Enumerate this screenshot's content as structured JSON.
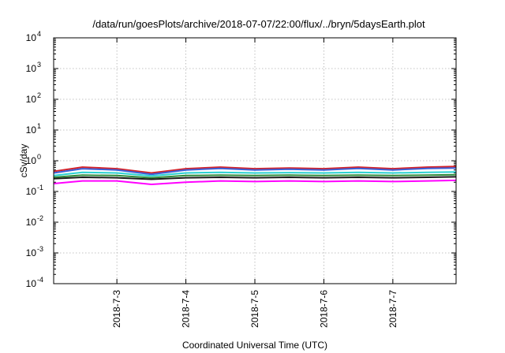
{
  "chart_data": {
    "type": "line",
    "title": "/data/run/goesPlots/archive/2018-07-07/22:00/flux/../bryn/5daysEarth.plot",
    "xlabel": "Coordinated Universal Time (UTC)",
    "ylabel": "cSv/day",
    "yscale": "log",
    "ylim": [
      0.0001,
      10000
    ],
    "xlim": [
      "2018-07-02 02:00",
      "2018-07-07 22:00"
    ],
    "grid": true,
    "y_ticks": [
      {
        "base": "10",
        "exp": "-4"
      },
      {
        "base": "10",
        "exp": "-3"
      },
      {
        "base": "10",
        "exp": "-2"
      },
      {
        "base": "10",
        "exp": "-1"
      },
      {
        "base": "10",
        "exp": "0"
      },
      {
        "base": "10",
        "exp": "1"
      },
      {
        "base": "10",
        "exp": "2"
      },
      {
        "base": "10",
        "exp": "3"
      },
      {
        "base": "10",
        "exp": "4"
      }
    ],
    "x_ticks": [
      "2018-7-3",
      "2018-7-4",
      "2018-7-5",
      "2018-7-6",
      "2018-7-7"
    ],
    "series": [
      {
        "color": "#d4232a",
        "x": [
          "2018-07-02 02:00",
          "2018-07-02 12:00",
          "2018-07-03 00:00",
          "2018-07-03 12:00",
          "2018-07-04 00:00",
          "2018-07-04 12:00",
          "2018-07-05 00:00",
          "2018-07-05 12:00",
          "2018-07-06 00:00",
          "2018-07-06 12:00",
          "2018-07-07 00:00",
          "2018-07-07 12:00",
          "2018-07-07 22:00"
        ],
        "y": [
          0.45,
          0.62,
          0.55,
          0.4,
          0.55,
          0.62,
          0.55,
          0.58,
          0.55,
          0.62,
          0.55,
          0.62,
          0.65
        ]
      },
      {
        "color": "#3a5fd9",
        "x": [
          "2018-07-02 02:00",
          "2018-07-02 12:00",
          "2018-07-03 00:00",
          "2018-07-03 12:00",
          "2018-07-04 00:00",
          "2018-07-04 12:00",
          "2018-07-05 00:00",
          "2018-07-05 12:00",
          "2018-07-06 00:00",
          "2018-07-06 12:00",
          "2018-07-07 00:00",
          "2018-07-07 12:00",
          "2018-07-07 22:00"
        ],
        "y": [
          0.4,
          0.55,
          0.5,
          0.36,
          0.5,
          0.56,
          0.5,
          0.53,
          0.5,
          0.56,
          0.5,
          0.56,
          0.58
        ]
      },
      {
        "color": "#2ad1d1",
        "x": [
          "2018-07-02 02:00",
          "2018-07-02 12:00",
          "2018-07-03 00:00",
          "2018-07-03 12:00",
          "2018-07-04 00:00",
          "2018-07-04 12:00",
          "2018-07-05 00:00",
          "2018-07-05 12:00",
          "2018-07-06 00:00",
          "2018-07-06 12:00",
          "2018-07-07 00:00",
          "2018-07-07 12:00",
          "2018-07-07 22:00"
        ],
        "y": [
          0.33,
          0.42,
          0.4,
          0.32,
          0.4,
          0.42,
          0.4,
          0.41,
          0.4,
          0.42,
          0.4,
          0.42,
          0.43
        ]
      },
      {
        "color": "#2e8b3a",
        "x": [
          "2018-07-02 02:00",
          "2018-07-02 12:00",
          "2018-07-03 00:00",
          "2018-07-03 12:00",
          "2018-07-04 00:00",
          "2018-07-04 12:00",
          "2018-07-05 00:00",
          "2018-07-05 12:00",
          "2018-07-06 00:00",
          "2018-07-06 12:00",
          "2018-07-07 00:00",
          "2018-07-07 12:00",
          "2018-07-07 22:00"
        ],
        "y": [
          0.29,
          0.34,
          0.33,
          0.28,
          0.33,
          0.34,
          0.33,
          0.34,
          0.33,
          0.34,
          0.33,
          0.34,
          0.35
        ]
      },
      {
        "color": "#1a1a1a",
        "x": [
          "2018-07-02 02:00",
          "2018-07-02 12:00",
          "2018-07-03 00:00",
          "2018-07-03 12:00",
          "2018-07-04 00:00",
          "2018-07-04 12:00",
          "2018-07-05 00:00",
          "2018-07-05 12:00",
          "2018-07-06 00:00",
          "2018-07-06 12:00",
          "2018-07-07 00:00",
          "2018-07-07 12:00",
          "2018-07-07 22:00"
        ],
        "y": [
          0.26,
          0.29,
          0.28,
          0.25,
          0.28,
          0.29,
          0.28,
          0.29,
          0.28,
          0.29,
          0.28,
          0.29,
          0.3
        ]
      },
      {
        "color": "#ff00ff",
        "x": [
          "2018-07-02 02:00",
          "2018-07-02 12:00",
          "2018-07-03 00:00",
          "2018-07-03 12:00",
          "2018-07-04 00:00",
          "2018-07-04 12:00",
          "2018-07-05 00:00",
          "2018-07-05 12:00",
          "2018-07-06 00:00",
          "2018-07-06 12:00",
          "2018-07-07 00:00",
          "2018-07-07 12:00",
          "2018-07-07 22:00"
        ],
        "y": [
          0.18,
          0.22,
          0.22,
          0.17,
          0.2,
          0.22,
          0.21,
          0.22,
          0.21,
          0.22,
          0.21,
          0.22,
          0.23
        ]
      }
    ]
  }
}
